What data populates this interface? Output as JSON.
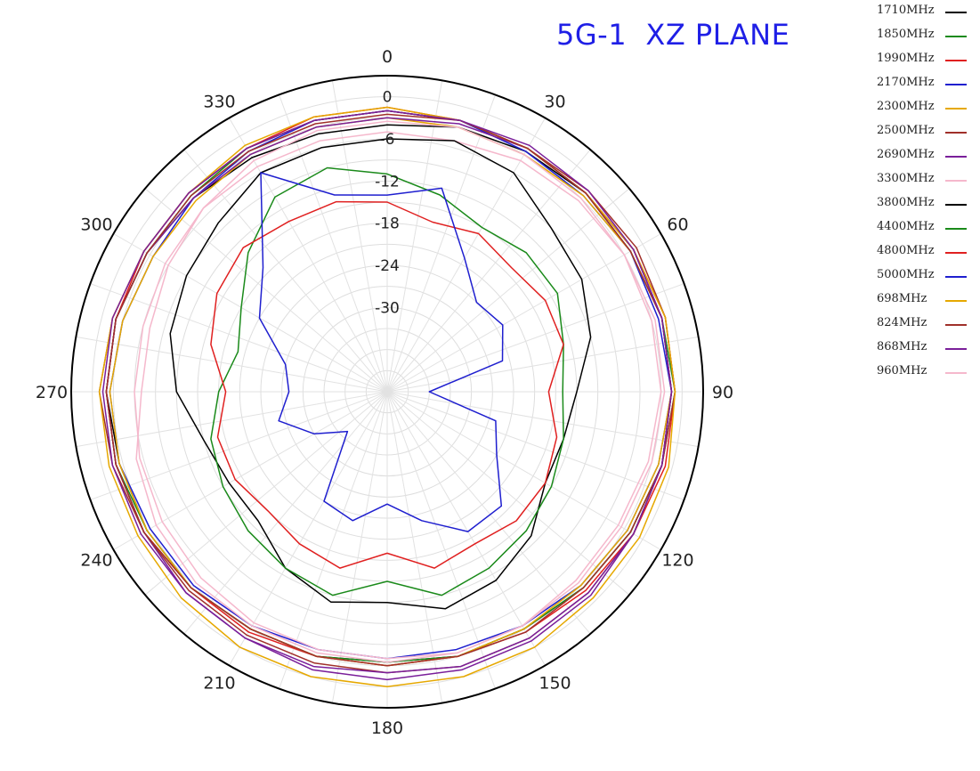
{
  "title": "5G-1  XZ PLANE",
  "chart_data": {
    "type": "polar-line",
    "title": "5G-1  XZ PLANE",
    "angle_unit": "degrees",
    "angle_ticks": [
      "0",
      "30",
      "60",
      "90",
      "120",
      "150",
      "180",
      "210",
      "240",
      "270",
      "300",
      "330"
    ],
    "radial_ticks": [
      "0",
      "-6",
      "-12",
      "-18",
      "-24",
      "-30"
    ],
    "r_range": [
      -42,
      3
    ],
    "grid": true,
    "legend_position": "top-right",
    "angles": [
      0,
      15,
      30,
      45,
      60,
      75,
      90,
      105,
      120,
      135,
      150,
      165,
      180,
      195,
      210,
      225,
      240,
      255,
      270,
      285,
      300,
      315,
      330,
      345
    ],
    "series": [
      {
        "name": "1710MHz",
        "color": "#000000",
        "values": [
          -4,
          -3,
          -2.5,
          -2,
          -2,
          -1.5,
          -1.5,
          -1.5,
          -2,
          -2.5,
          -3,
          -3,
          -3.5,
          -3,
          -3,
          -2.5,
          -2.5,
          -2.5,
          -2,
          -2,
          -2.5,
          -3,
          -3.5,
          -4
        ]
      },
      {
        "name": "1850MHz",
        "color": "#1a8a1a",
        "values": [
          -2,
          -2,
          -2,
          -2,
          -1.5,
          -1.5,
          -1,
          -1.5,
          -2,
          -2.5,
          -3,
          -3,
          -3.5,
          -3,
          -3,
          -2.5,
          -2.5,
          -2,
          -2,
          -2,
          -2.5,
          -2.5,
          -2,
          -2
        ]
      },
      {
        "name": "1990MHz",
        "color": "#e02020",
        "values": [
          -1.5,
          -2,
          -2,
          -2,
          -1.5,
          -1,
          -1,
          -1,
          -1.5,
          -2,
          -2.5,
          -3,
          -3,
          -3,
          -2.5,
          -2.5,
          -2,
          -2,
          -2,
          -2,
          -2,
          -2,
          -2,
          -1.5
        ]
      },
      {
        "name": "2170MHz",
        "color": "#1f1fcf",
        "values": [
          -2,
          -2,
          -2.5,
          -2.5,
          -2,
          -2,
          -1.5,
          -2,
          -2.5,
          -3,
          -3.5,
          -4,
          -4,
          -4,
          -3.5,
          -3,
          -3,
          -2.5,
          -2.5,
          -3,
          -3.5,
          -3,
          -2.5,
          -2
        ]
      },
      {
        "name": "2300MHz",
        "color": "#e6a800",
        "values": [
          -3,
          -3,
          -3,
          -2.5,
          -2,
          -1.5,
          -1.5,
          -2,
          -2.5,
          -3,
          -3,
          -3,
          -3,
          -3,
          -3,
          -2.5,
          -2.5,
          -2.5,
          -2.5,
          -3,
          -3.5,
          -3.5,
          -3,
          -3
        ]
      },
      {
        "name": "2500MHz",
        "color": "#a0302a",
        "values": [
          -2,
          -2,
          -2,
          -1.5,
          -1,
          -1,
          -1,
          -1.5,
          -2,
          -2.5,
          -2.5,
          -3,
          -3,
          -3,
          -3,
          -2.5,
          -2,
          -1.5,
          -1,
          -1.5,
          -2,
          -2,
          -2,
          -2
        ]
      },
      {
        "name": "2690MHz",
        "color": "#7a1f9a",
        "values": [
          -3,
          -2.5,
          -2,
          -2,
          -1.5,
          -1.5,
          -1.5,
          -1.5,
          -1.5,
          -1,
          -1,
          -1,
          -1,
          -1,
          -1.5,
          -1.5,
          -2,
          -2,
          -2,
          -2,
          -2.5,
          -3,
          -3,
          -3
        ]
      },
      {
        "name": "3300MHz",
        "color": "#f5b8cc",
        "values": [
          -5,
          -5,
          -4,
          -3.5,
          -3,
          -3,
          -3,
          -3.5,
          -4,
          -4,
          -3.5,
          -3.5,
          -4,
          -4,
          -4,
          -4.5,
          -5,
          -5.5,
          -6,
          -6,
          -5.5,
          -5,
          -5,
          -5
        ]
      },
      {
        "name": "3800MHz",
        "color": "#000000",
        "values": [
          -6,
          -5,
          -6,
          -9,
          -10,
          -12,
          -15,
          -16,
          -16,
          -13,
          -11,
          -10,
          -12,
          -11,
          -13,
          -16,
          -16,
          -15,
          -12,
          -10,
          -9,
          -8,
          -6,
          -6
        ]
      },
      {
        "name": "4400MHz",
        "color": "#1a8a1a",
        "values": [
          -11,
          -13,
          -15,
          -14,
          -14,
          -16,
          -17,
          -16,
          -15,
          -14,
          -13,
          -12,
          -15,
          -12,
          -13,
          -14,
          -15,
          -16,
          -18,
          -20,
          -18,
          -14,
          -10,
          -9
        ]
      },
      {
        "name": "4800MHz",
        "color": "#e02020",
        "values": [
          -15,
          -17,
          -16,
          -17,
          -16,
          -16,
          -19,
          -17,
          -16,
          -16,
          -17,
          -16,
          -19,
          -16,
          -17,
          -18,
          -17,
          -17,
          -19,
          -16,
          -14,
          -13,
          -14,
          -14
        ]
      },
      {
        "name": "5000MHz",
        "color": "#1f1fcf",
        "values": [
          -14,
          -12,
          -20,
          -24,
          -23,
          -25,
          -36,
          -26,
          -24,
          -19,
          -19,
          -23,
          -26,
          -23,
          -24,
          -34,
          -30,
          -26,
          -28,
          -27,
          -21,
          -17,
          -6,
          -13
        ]
      },
      {
        "name": "698MHz",
        "color": "#e6a800",
        "values": [
          -1.5,
          -2,
          -2,
          -2,
          -1.5,
          -1,
          -1,
          -0.5,
          -0.5,
          -0.5,
          0,
          0,
          0,
          0,
          0,
          -0.5,
          -1,
          -1,
          -1,
          -1.5,
          -2,
          -2,
          -1.5,
          -1.5
        ]
      },
      {
        "name": "824MHz",
        "color": "#a0302a",
        "values": [
          -2.5,
          -2,
          -2,
          -2,
          -2,
          -1.5,
          -1.5,
          -1.5,
          -1.5,
          -1.5,
          -1.5,
          -1.5,
          -2,
          -2,
          -2,
          -2,
          -2,
          -2,
          -2,
          -2,
          -2.5,
          -2.5,
          -2.5,
          -2.5
        ]
      },
      {
        "name": "868MHz",
        "color": "#7a1f9a",
        "values": [
          -2,
          -2,
          -1.5,
          -1.5,
          -1.5,
          -1.5,
          -1.5,
          -1.5,
          -1.5,
          -1.5,
          -1.5,
          -1.5,
          -2,
          -1.5,
          -1.5,
          -1.5,
          -1.5,
          -1.5,
          -1.5,
          -1.5,
          -2,
          -2,
          -2,
          -2
        ]
      },
      {
        "name": "960MHz",
        "color": "#f5b8cc",
        "values": [
          -3.5,
          -3,
          -3,
          -3,
          -3,
          -2.5,
          -2.5,
          -3,
          -3.5,
          -3.5,
          -3.5,
          -3.5,
          -3.5,
          -3.5,
          -3.5,
          -3.5,
          -4,
          -5,
          -7,
          -7,
          -6,
          -5,
          -4,
          -3.5
        ]
      }
    ]
  }
}
